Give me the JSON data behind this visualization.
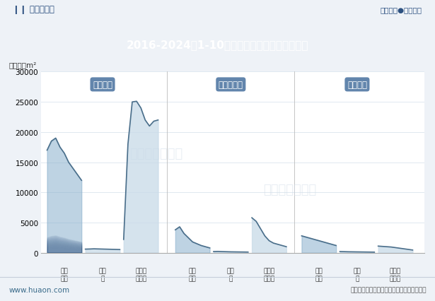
{
  "title": "2016-2024年1-10月山西省房地产施工面积情况",
  "unit_label": "单位：万m²",
  "header_left": "华经情报网",
  "header_right": "专业严谨●客观科学",
  "footer_left": "www.huaon.com",
  "footer_right": "数据来源：国家统计局，华经产业研究院整理",
  "watermark1": "华经产业研究院",
  "watermark2": "www.huaon.com",
  "header_top_bg": "#f0f4f8",
  "header_title_bg": "#4b6b9a",
  "plot_bg": "#ffffff",
  "outer_bg": "#eef2f7",
  "label_box_bg": "#5a7fa8",
  "ylim": [
    0,
    30000
  ],
  "yticks": [
    0,
    5000,
    10000,
    15000,
    20000,
    25000,
    30000
  ],
  "line_color": "#4a6e8a",
  "fill_color_blue": "#8ab0cc",
  "fill_color_light": "#c8dae8",
  "groups": [
    {
      "label": "施工面积",
      "series": [
        {
          "name": "商品\n住宅",
          "y": [
            17000,
            18500,
            19000,
            17500,
            16500,
            15000,
            14000,
            13000,
            12000
          ],
          "style": "gradient_blue"
        },
        {
          "name": "办公\n楼",
          "y": [
            600,
            620,
            650,
            630,
            610,
            590,
            570,
            550,
            530
          ],
          "style": "light"
        },
        {
          "name": "商业营\n业用房",
          "y": [
            2200,
            18000,
            25000,
            25100,
            24000,
            22000,
            21000,
            21800,
            22000
          ],
          "style": "light_arch"
        }
      ]
    },
    {
      "label": "新开工面积",
      "series": [
        {
          "name": "商品\n住宅",
          "y": [
            3800,
            4300,
            3200,
            2500,
            1800,
            1500,
            1200,
            1000,
            800
          ],
          "style": "gradient_blue_small"
        },
        {
          "name": "办公\n楼",
          "y": [
            200,
            220,
            190,
            170,
            150,
            140,
            130,
            120,
            110
          ],
          "style": "light"
        },
        {
          "name": "商业营\n业用房",
          "y": [
            5800,
            5200,
            4000,
            2800,
            2000,
            1600,
            1400,
            1200,
            1000
          ],
          "style": "light"
        }
      ]
    },
    {
      "label": "竣工面积",
      "series": [
        {
          "name": "商品\n住宅",
          "y": [
            2800,
            2600,
            2400,
            2200,
            2000,
            1800,
            1600,
            1400,
            1200
          ],
          "style": "gradient_blue_small"
        },
        {
          "name": "办公\n楼",
          "y": [
            200,
            180,
            160,
            150,
            140,
            130,
            120,
            110,
            100
          ],
          "style": "light"
        },
        {
          "name": "商业营\n业用房",
          "y": [
            1100,
            1050,
            1000,
            950,
            850,
            750,
            650,
            550,
            450
          ],
          "style": "light"
        }
      ]
    }
  ]
}
